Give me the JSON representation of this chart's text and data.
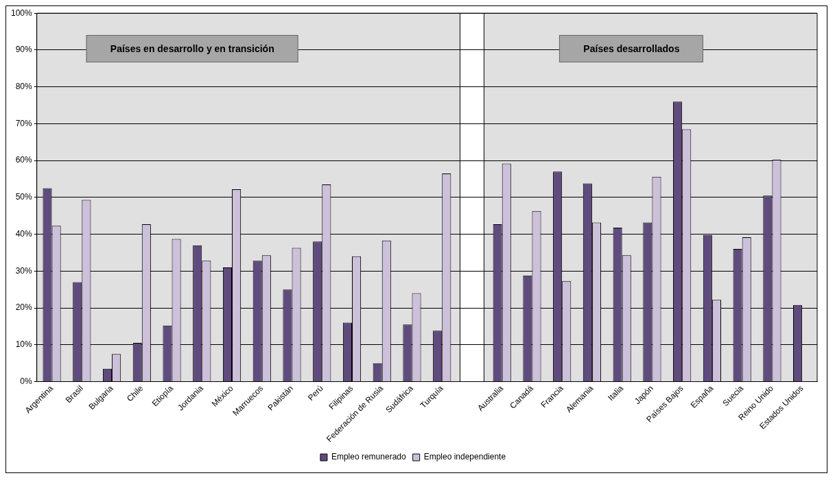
{
  "chart_data": {
    "type": "bar",
    "categories": [
      "Argentina",
      "Brasil",
      "Bulgaria",
      "Chile",
      "Etiopía",
      "Jordania",
      "México",
      "Marruecos",
      "Pakistán",
      "Perú",
      "Filipinas",
      "Federación de Rusia",
      "Sudáfrica",
      "Turquía",
      null,
      "Australia",
      "Canadá",
      "Francia",
      "Alemania",
      "Italia",
      "Japón",
      "Países Bajos",
      "España",
      "Suecia",
      "Reino Unido",
      "Estados Unidos"
    ],
    "series": [
      {
        "name": "Empleo remunerado",
        "color": "#5f4b7d",
        "values": [
          52.5,
          27,
          3.5,
          10.5,
          15.2,
          37,
          31,
          32.8,
          25,
          38,
          16,
          5,
          15.5,
          13.8,
          null,
          42.7,
          28.8,
          57,
          53.8,
          41.8,
          43.2,
          76,
          39.8,
          36,
          50.5,
          20.8
        ]
      },
      {
        "name": "Empleo independiente",
        "color": "#ccc0da",
        "values": [
          42.3,
          49.3,
          7.5,
          42.7,
          38.7,
          32.8,
          52.2,
          34.3,
          36.3,
          53.5,
          34,
          38.3,
          24,
          56.5,
          null,
          59.2,
          46.3,
          27.3,
          43.2,
          34.3,
          55.6,
          68.5,
          22.2,
          39.2,
          60.2,
          null
        ]
      }
    ],
    "ylim": [
      0,
      100
    ],
    "yticks": [
      {
        "value": 0,
        "label": "0%"
      },
      {
        "value": 10,
        "label": "10%"
      },
      {
        "value": 20,
        "label": "20%"
      },
      {
        "value": 30,
        "label": "30%"
      },
      {
        "value": 40,
        "label": "40%"
      },
      {
        "value": 50,
        "label": "50%"
      },
      {
        "value": 60,
        "label": "60%"
      },
      {
        "value": 70,
        "label": "70%"
      },
      {
        "value": 80,
        "label": "80%"
      },
      {
        "value": 90,
        "label": "90%"
      },
      {
        "value": 100,
        "label": "100%"
      }
    ],
    "grid": "y",
    "legend": "bottom",
    "annotations": [
      "Países en desarrollo y en transición",
      "Países desarrollados"
    ]
  }
}
